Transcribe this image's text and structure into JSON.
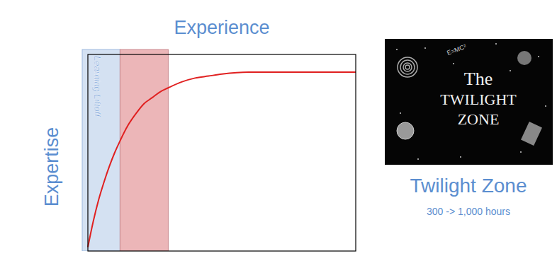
{
  "chart_data": {
    "type": "line",
    "x_label": "Experience",
    "y_label": "Expertise",
    "x": [
      0,
      2,
      4,
      6,
      8,
      10,
      12,
      15,
      18,
      21,
      24,
      27,
      30,
      35,
      40,
      45,
      50,
      60,
      70,
      80,
      90,
      100
    ],
    "values": [
      2,
      15,
      26,
      35,
      43,
      50,
      56,
      64,
      70,
      75,
      78,
      81,
      83,
      86,
      88,
      89,
      90,
      91,
      91,
      91,
      91,
      91
    ],
    "color": "#e02020",
    "xlim": [
      0,
      100
    ],
    "ylim": [
      0,
      100
    ],
    "tick_labels": false,
    "annotations": [
      {
        "label": "Learning Liftoff",
        "range": [
          0,
          12
        ],
        "color": "#cddcf0"
      },
      {
        "range": [
          12,
          30
        ],
        "color": "#e9a9ab"
      }
    ]
  },
  "panel": {
    "image_text": [
      "The",
      "TWILIGHT",
      "ZONE"
    ],
    "formula": "E=MC²",
    "title": "Twilight Zone",
    "subtitle": "300 -> 1,000 hours"
  }
}
